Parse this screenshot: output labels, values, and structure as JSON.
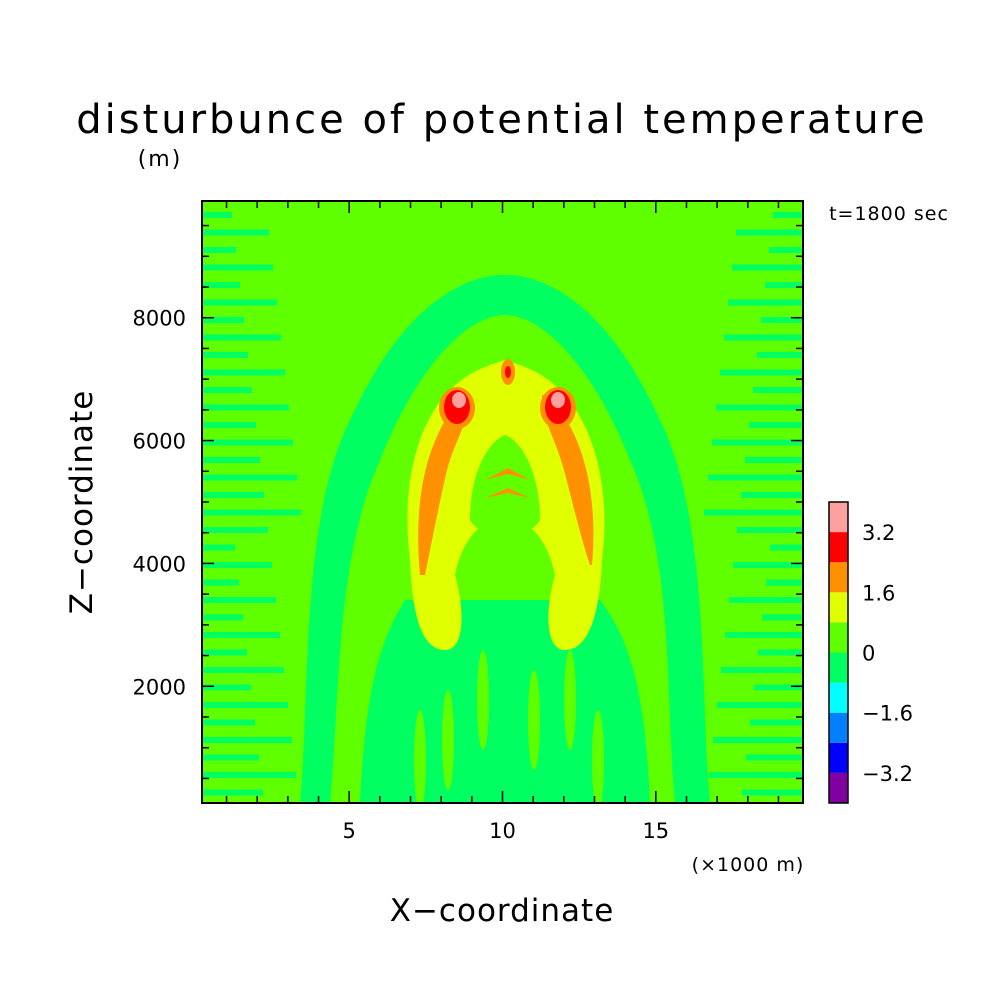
{
  "chart_data": {
    "type": "heatmap",
    "title": "disturbunce of potential temperature",
    "subtitle": "(m)",
    "xlabel": "X−coordinate",
    "ylabel": "Z−coordinate",
    "x_unit": "(×1000 m)",
    "annotation": "t=1800 sec",
    "xlim": [
      0.2,
      19.8
    ],
    "ylim": [
      100,
      9900
    ],
    "x_ticks": [
      5,
      10,
      15
    ],
    "x_tick_labels": [
      "5",
      "10",
      "15"
    ],
    "y_ticks": [
      2000,
      4000,
      6000,
      8000
    ],
    "y_tick_labels": [
      "2000",
      "4000",
      "6000",
      "8000"
    ],
    "colorbar": {
      "levels": [
        -4.0,
        -3.2,
        -2.4,
        -1.6,
        -0.8,
        0,
        0.8,
        1.6,
        2.4,
        3.2,
        4.0
      ],
      "labels": [
        "−3.2",
        "−1.6",
        "0",
        "1.6",
        "3.2"
      ],
      "label_values": [
        -3.2,
        -1.6,
        0,
        1.6,
        3.2
      ],
      "colors": [
        "#8000a0",
        "#0000ff",
        "#0080ff",
        "#00ffff",
        "#00ff60",
        "#60ff00",
        "#e0ff00",
        "#ff9000",
        "#ff0000",
        "#ffa0a0"
      ]
    },
    "features": [
      {
        "kind": "warm-plume-outer",
        "level": 0.4,
        "center_x": 10.0,
        "bottom_z": 2450,
        "top_z": 7950,
        "half_width_x": 4.3
      },
      {
        "kind": "warm-arc-left",
        "level": 1.2,
        "x_range": [
          6.8,
          10.0
        ],
        "z_range": [
          2500,
          6900
        ]
      },
      {
        "kind": "warm-arc-right",
        "level": 1.2,
        "x_range": [
          10.3,
          13.6
        ],
        "z_range": [
          2500,
          6900
        ]
      },
      {
        "kind": "max-left",
        "level": 3.6,
        "x": 8.7,
        "z": 6700
      },
      {
        "kind": "max-right",
        "level": 3.6,
        "x": 11.7,
        "z": 6700
      },
      {
        "kind": "max-top",
        "level": 2.8,
        "x": 10.1,
        "z": 7100
      }
    ]
  }
}
